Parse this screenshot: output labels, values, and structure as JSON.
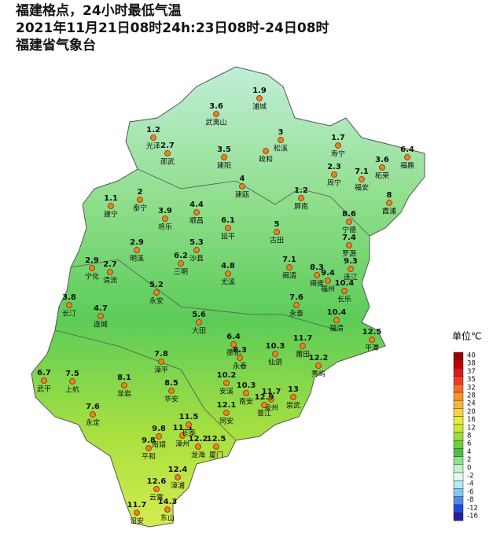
{
  "header": {
    "lines": [
      "福建格点，24小时最低气温",
      "2021年11月21日08时24h:23日08时-24日08时",
      "福建省气象台"
    ]
  },
  "stations": [
    {
      "name": "浦城",
      "value": 1.9
    },
    {
      "name": "武夷山",
      "value": 3.6
    },
    {
      "name": "光泽",
      "value": 1.2
    },
    {
      "name": "邵武",
      "value": 2.7
    },
    {
      "name": "松溪",
      "value": 3
    },
    {
      "name": "政和"
    },
    {
      "name": "建阳",
      "value": 3.5
    },
    {
      "name": "寿宁",
      "value": 1.7
    },
    {
      "name": "周宁",
      "value": 2.3
    },
    {
      "name": "福安",
      "value": 7.1
    },
    {
      "name": "柘荣",
      "value": 3.6
    },
    {
      "name": "福鼎",
      "value": 6.4
    },
    {
      "name": "霞浦",
      "value": 8
    },
    {
      "name": "建瓯",
      "value": 4
    },
    {
      "name": "屏南",
      "value": 1.2
    },
    {
      "name": "建宁",
      "value": 1.1
    },
    {
      "name": "泰宁",
      "value": 2
    },
    {
      "name": "将乐",
      "value": 3.9
    },
    {
      "name": "顺昌",
      "value": 4.4
    },
    {
      "name": "延平",
      "value": 6.1
    },
    {
      "name": "古田",
      "value": 5
    },
    {
      "name": "宁德",
      "value": 8.6
    },
    {
      "name": "罗源",
      "value": 7.4
    },
    {
      "name": "明溪",
      "value": 2.9
    },
    {
      "name": "沙县",
      "value": 5.3
    },
    {
      "name": "三明",
      "value": 6.2
    },
    {
      "name": "尤溪",
      "value": 4.8
    },
    {
      "name": "宁化",
      "value": 2.9
    },
    {
      "name": "清流",
      "value": 2.7
    },
    {
      "name": "闽清",
      "value": 7.1
    },
    {
      "name": "闽侯",
      "value": 8.3
    },
    {
      "name": "连江",
      "value": 9.3
    },
    {
      "name": "福州",
      "value": 9.4
    },
    {
      "name": "永安",
      "value": 5.2
    },
    {
      "name": "长乐",
      "value": 10.4
    },
    {
      "name": "长汀",
      "value": 3.8
    },
    {
      "name": "连城",
      "value": 4.7
    },
    {
      "name": "永泰",
      "value": 7.6
    },
    {
      "name": "大田",
      "value": 5.6
    },
    {
      "name": "福清",
      "value": 10.4
    },
    {
      "name": "平潭",
      "value": 12.5
    },
    {
      "name": "德化",
      "value": 6.4
    },
    {
      "name": "永春",
      "value": 8.3
    },
    {
      "name": "仙游",
      "value": 10.3
    },
    {
      "name": "莆田",
      "value": 11.7
    },
    {
      "name": "漳平",
      "value": 7.8
    },
    {
      "name": "秀屿",
      "value": 12.2
    },
    {
      "name": "武平",
      "value": 6.7
    },
    {
      "name": "上杭",
      "value": 7.5
    },
    {
      "name": "龙岩",
      "value": 8.1
    },
    {
      "name": "华安",
      "value": 8.5
    },
    {
      "name": "安溪",
      "value": 10.2
    },
    {
      "name": "南安",
      "value": 10.3
    },
    {
      "name": "崇武",
      "value": 13
    },
    {
      "name": "泉州",
      "value": 11.7
    },
    {
      "name": "晋江",
      "value": 12.9
    },
    {
      "name": "永定",
      "value": 7.6
    },
    {
      "name": "同安",
      "value": 12.1
    },
    {
      "name": "南靖",
      "value": 9.8
    },
    {
      "name": "漳州",
      "value": 11.5
    },
    {
      "name": "长泰",
      "value": 11.5
    },
    {
      "name": "平和",
      "value": 9.8
    },
    {
      "name": "龙海",
      "value": 12.2
    },
    {
      "name": "厦门",
      "value": 12.5
    },
    {
      "name": "漳浦",
      "value": 12.4
    },
    {
      "name": "云霄",
      "value": 12.6
    },
    {
      "name": "诏安",
      "value": 11.7
    },
    {
      "name": "东山",
      "value": 14.3
    }
  ],
  "legend": {
    "title": "单位℃",
    "labels": [
      40,
      38,
      37,
      35,
      32,
      28,
      24,
      20,
      16,
      12,
      8,
      6,
      4,
      2,
      0,
      -2,
      -4,
      -6,
      -8,
      -12,
      -16
    ],
    "colors": [
      "#9a0000",
      "#c00000",
      "#e01818",
      "#f03c20",
      "#f86a24",
      "#f8962c",
      "#f8b43c",
      "#f8d444",
      "#ecea34",
      "#cce834",
      "#a0dc3c",
      "#70cc44",
      "#4cbc4c",
      "#90e08c",
      "#c4f4c8",
      "#e4fcf4",
      "#b4e8f8",
      "#84c8f8",
      "#4c8cec",
      "#2048d8",
      "#24209c"
    ]
  }
}
